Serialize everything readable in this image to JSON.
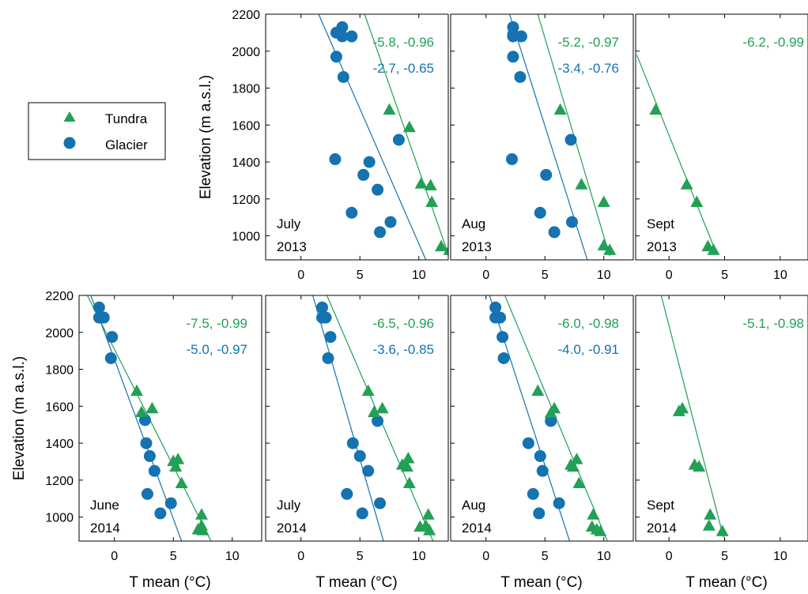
{
  "colors": {
    "tundra": "#22a055",
    "glacier": "#1473b0",
    "axis": "#000000"
  },
  "legend": {
    "tundra_label": "Tundra",
    "glacier_label": "Glacier",
    "tundra_icon": "triangle",
    "glacier_icon": "circle"
  },
  "labels": {
    "ylabel": "Elevation (m a.s.l.)",
    "xlabel": "T mean (°C)"
  },
  "chart_data": [
    {
      "type": "scatter",
      "panel": "July 2013",
      "month": "July",
      "year": "2013",
      "xlim": [
        -3,
        12.5
      ],
      "ylim": [
        870,
        2200
      ],
      "xticks": [
        "0",
        "5",
        "10"
      ],
      "yticks": [
        "1000",
        "1200",
        "1400",
        "1600",
        "1800",
        "2000",
        "2200"
      ],
      "series": [
        {
          "name": "Tundra",
          "fit_label": "-5.8, -0.96",
          "fit": {
            "slope": -5.8,
            "r": -0.96,
            "x": [
              5.4,
              12.4
            ],
            "y": [
              2200,
              920
            ]
          },
          "points": [
            [
              7.5,
              1680
            ],
            [
              9.2,
              1585
            ],
            [
              10.2,
              1280
            ],
            [
              11.0,
              1270
            ],
            [
              11.1,
              1180
            ],
            [
              11.9,
              940
            ],
            [
              12.6,
              920
            ]
          ]
        },
        {
          "name": "Glacier",
          "fit_label": "-2.7, -0.65",
          "fit": {
            "slope": -2.7,
            "r": -0.65,
            "x": [
              1.5,
              10.6
            ],
            "y": [
              2200,
              870
            ]
          },
          "points": [
            [
              3.0,
              2100
            ],
            [
              3.5,
              2130
            ],
            [
              3.5,
              2080
            ],
            [
              4.3,
              2080
            ],
            [
              3.0,
              1970
            ],
            [
              3.6,
              1860
            ],
            [
              8.3,
              1520
            ],
            [
              2.9,
              1415
            ],
            [
              5.8,
              1400
            ],
            [
              5.3,
              1330
            ],
            [
              6.5,
              1250
            ],
            [
              4.3,
              1125
            ],
            [
              7.6,
              1075
            ],
            [
              6.7,
              1020
            ]
          ]
        }
      ]
    },
    {
      "type": "scatter",
      "panel": "Aug 2013",
      "month": "Aug",
      "year": "2013",
      "xlim": [
        -3,
        12.5
      ],
      "ylim": [
        870,
        2200
      ],
      "xticks": [
        "0",
        "5",
        "10"
      ],
      "yticks": [],
      "series": [
        {
          "name": "Tundra",
          "fit_label": "-5.2, -0.97",
          "fit": {
            "slope": -5.2,
            "r": -0.97,
            "x": [
              4.4,
              10.5
            ],
            "y": [
              2200,
              890
            ]
          },
          "points": [
            [
              6.3,
              1680
            ],
            [
              8.1,
              1275
            ],
            [
              10.0,
              1180
            ],
            [
              10.0,
              945
            ],
            [
              10.5,
              920
            ]
          ]
        },
        {
          "name": "Glacier",
          "fit_label": "-3.4, -0.76",
          "fit": {
            "slope": -3.4,
            "r": -0.76,
            "x": [
              2.0,
              8.6
            ],
            "y": [
              2200,
              870
            ]
          },
          "points": [
            [
              2.3,
              2130
            ],
            [
              2.3,
              2090
            ],
            [
              2.3,
              2080
            ],
            [
              3.0,
              2080
            ],
            [
              2.3,
              1970
            ],
            [
              2.9,
              1860
            ],
            [
              7.2,
              1520
            ],
            [
              2.2,
              1415
            ],
            [
              5.1,
              1330
            ],
            [
              4.6,
              1125
            ],
            [
              7.3,
              1075
            ],
            [
              5.8,
              1020
            ]
          ]
        }
      ]
    },
    {
      "type": "scatter",
      "panel": "Sept 2013",
      "month": "Sept",
      "year": "2013",
      "xlim": [
        -3,
        12.5
      ],
      "ylim": [
        870,
        2200
      ],
      "xticks": [
        "0",
        "5",
        "10"
      ],
      "yticks": [],
      "series": [
        {
          "name": "Tundra",
          "fit_label": "-6.2, -0.99",
          "fit": {
            "slope": -6.2,
            "r": -0.99,
            "x": [
              -2.9,
              4.3
            ],
            "y": [
              1980,
              900
            ]
          },
          "points": [
            [
              -1.2,
              1680
            ],
            [
              1.6,
              1275
            ],
            [
              2.5,
              1180
            ],
            [
              3.5,
              940
            ],
            [
              4.0,
              920
            ]
          ]
        }
      ]
    },
    {
      "type": "scatter",
      "panel": "June 2014",
      "month": "June",
      "year": "2014",
      "xlim": [
        -3,
        12.5
      ],
      "ylim": [
        870,
        2200
      ],
      "xticks": [
        "0",
        "5",
        "10"
      ],
      "yticks": [
        "1000",
        "1200",
        "1400",
        "1600",
        "1800",
        "2000",
        "2200"
      ],
      "series": [
        {
          "name": "Tundra",
          "fit_label": "-7.5, -0.99",
          "fit": {
            "slope": -7.5,
            "r": -0.99,
            "x": [
              -2.3,
              8.2
            ],
            "y": [
              2200,
              870
            ]
          },
          "points": [
            [
              1.9,
              1680
            ],
            [
              2.3,
              1565
            ],
            [
              3.2,
              1585
            ],
            [
              5.0,
              1300
            ],
            [
              5.4,
              1310
            ],
            [
              5.2,
              1270
            ],
            [
              5.7,
              1180
            ],
            [
              7.4,
              1010
            ],
            [
              7.4,
              950
            ],
            [
              7.1,
              930
            ],
            [
              7.5,
              925
            ]
          ]
        },
        {
          "name": "Glacier",
          "fit_label": "-5.0, -0.97",
          "fit": {
            "slope": -5.0,
            "r": -0.97,
            "x": [
              -2.0,
              5.7
            ],
            "y": [
              2200,
              870
            ]
          },
          "points": [
            [
              -1.3,
              2135
            ],
            [
              -1.3,
              2080
            ],
            [
              -0.9,
              2080
            ],
            [
              -0.2,
              1975
            ],
            [
              -0.3,
              1860
            ],
            [
              2.6,
              1525
            ],
            [
              2.7,
              1400
            ],
            [
              3.0,
              1330
            ],
            [
              3.4,
              1250
            ],
            [
              2.8,
              1125
            ],
            [
              4.8,
              1075
            ],
            [
              3.9,
              1020
            ]
          ]
        }
      ]
    },
    {
      "type": "scatter",
      "panel": "July 2014",
      "month": "July",
      "year": "2014",
      "xlim": [
        -3,
        12.5
      ],
      "ylim": [
        870,
        2200
      ],
      "xticks": [
        "0",
        "5",
        "10"
      ],
      "yticks": [],
      "series": [
        {
          "name": "Tundra",
          "fit_label": "-6.5, -0.96",
          "fit": {
            "slope": -6.5,
            "r": -0.96,
            "x": [
              2.2,
              11.2
            ],
            "y": [
              2200,
              870
            ]
          },
          "points": [
            [
              5.7,
              1680
            ],
            [
              6.2,
              1565
            ],
            [
              6.9,
              1585
            ],
            [
              8.6,
              1280
            ],
            [
              9.1,
              1315
            ],
            [
              9.0,
              1270
            ],
            [
              9.2,
              1180
            ],
            [
              10.8,
              1010
            ],
            [
              10.6,
              950
            ],
            [
              10.1,
              945
            ],
            [
              10.9,
              925
            ]
          ]
        },
        {
          "name": "Glacier",
          "fit_label": "-3.6, -0.85",
          "fit": {
            "slope": -3.6,
            "r": -0.85,
            "x": [
              1.0,
              7.0
            ],
            "y": [
              2200,
              870
            ]
          },
          "points": [
            [
              1.8,
              2135
            ],
            [
              1.8,
              2080
            ],
            [
              2.1,
              2080
            ],
            [
              2.5,
              1975
            ],
            [
              2.3,
              1860
            ],
            [
              6.5,
              1520
            ],
            [
              4.4,
              1400
            ],
            [
              5.0,
              1330
            ],
            [
              5.7,
              1250
            ],
            [
              3.9,
              1125
            ],
            [
              6.7,
              1075
            ],
            [
              5.2,
              1020
            ]
          ]
        }
      ]
    },
    {
      "type": "scatter",
      "panel": "Aug 2014",
      "month": "Aug",
      "year": "2014",
      "xlim": [
        -3,
        12.5
      ],
      "ylim": [
        870,
        2200
      ],
      "xticks": [
        "0",
        "5",
        "10"
      ],
      "yticks": [],
      "series": [
        {
          "name": "Tundra",
          "fit_label": "-6.0, -0.98",
          "fit": {
            "slope": -6.0,
            "r": -0.98,
            "x": [
              1.6,
              10.3
            ],
            "y": [
              2200,
              870
            ]
          },
          "points": [
            [
              4.4,
              1680
            ],
            [
              5.5,
              1560
            ],
            [
              5.8,
              1585
            ],
            [
              7.2,
              1280
            ],
            [
              7.7,
              1310
            ],
            [
              7.4,
              1270
            ],
            [
              7.9,
              1180
            ],
            [
              9.1,
              1010
            ],
            [
              9.0,
              945
            ],
            [
              9.4,
              930
            ],
            [
              9.7,
              920
            ]
          ]
        },
        {
          "name": "Glacier",
          "fit_label": "-4.0, -0.91",
          "fit": {
            "slope": -4.0,
            "r": -0.91,
            "x": [
              0.3,
              7.1
            ],
            "y": [
              2200,
              870
            ]
          },
          "points": [
            [
              0.8,
              2135
            ],
            [
              0.8,
              2080
            ],
            [
              1.2,
              2080
            ],
            [
              1.4,
              1975
            ],
            [
              1.5,
              1860
            ],
            [
              5.5,
              1520
            ],
            [
              3.6,
              1400
            ],
            [
              4.6,
              1330
            ],
            [
              4.8,
              1250
            ],
            [
              4.0,
              1125
            ],
            [
              6.2,
              1075
            ],
            [
              4.5,
              1020
            ]
          ]
        }
      ]
    },
    {
      "type": "scatter",
      "panel": "Sept 2014",
      "month": "Sept",
      "year": "2014",
      "xlim": [
        -3,
        12.5
      ],
      "ylim": [
        870,
        2200
      ],
      "xticks": [
        "0",
        "5",
        "10"
      ],
      "yticks": [],
      "series": [
        {
          "name": "Tundra",
          "fit_label": "-5.1, -0.98",
          "fit": {
            "slope": -5.1,
            "r": -0.98,
            "x": [
              -0.7,
              4.9
            ],
            "y": [
              2200,
              890
            ]
          },
          "points": [
            [
              0.9,
              1570
            ],
            [
              1.2,
              1585
            ],
            [
              2.3,
              1280
            ],
            [
              2.7,
              1270
            ],
            [
              3.7,
              1010
            ],
            [
              3.6,
              950
            ],
            [
              4.8,
              920
            ]
          ]
        }
      ]
    }
  ]
}
